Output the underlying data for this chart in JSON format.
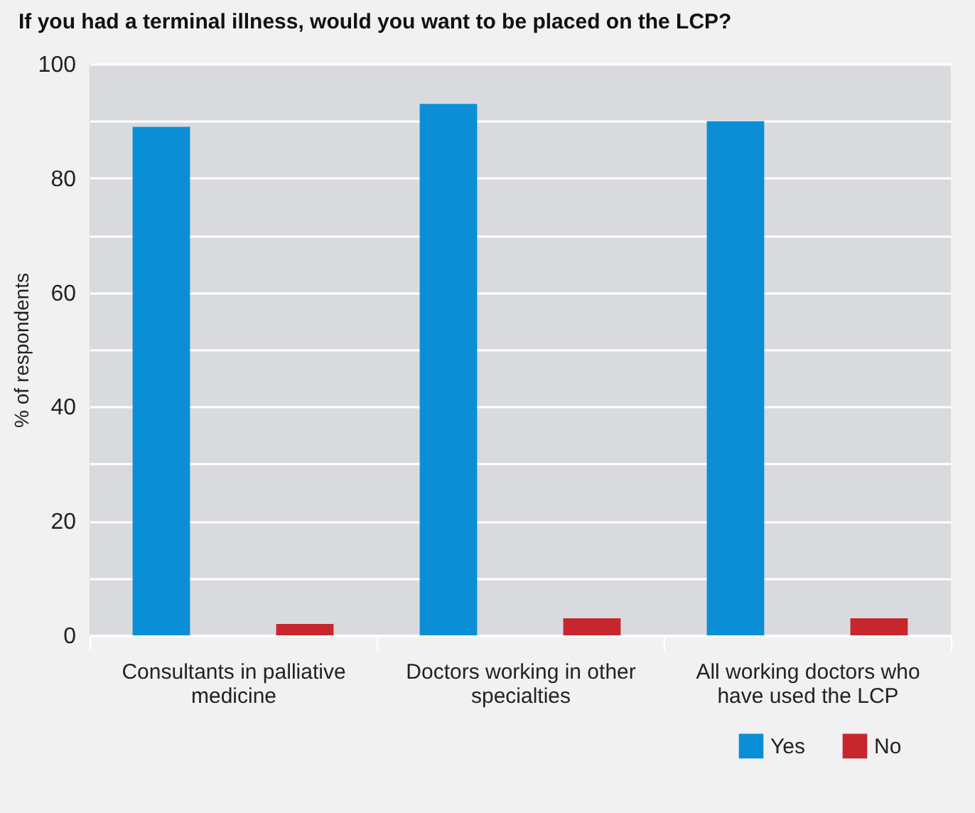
{
  "chart_data": {
    "type": "bar",
    "title": "If you had a terminal illness, would you want to be placed on the LCP?",
    "ylabel": "% of respondents",
    "categories": [
      "Consultants in palliative medicine",
      "Doctors working in other specialties",
      "All working doctors who have used the LCP"
    ],
    "series": [
      {
        "name": "Yes",
        "color": "#0a8fd6",
        "values": [
          89,
          93,
          90
        ]
      },
      {
        "name": "No",
        "color": "#c8262e",
        "values": [
          2,
          3,
          3
        ]
      }
    ],
    "ylim": [
      0,
      100
    ],
    "yticks": [
      0,
      {
        "value": 10,
        "label": null
      },
      20,
      {
        "value": 30,
        "label": null
      },
      40,
      {
        "value": 50,
        "label": null
      },
      60,
      {
        "value": 70,
        "label": null
      },
      80,
      {
        "value": 90,
        "label": null
      },
      100
    ],
    "grid": "y",
    "legend": "bottom right"
  }
}
